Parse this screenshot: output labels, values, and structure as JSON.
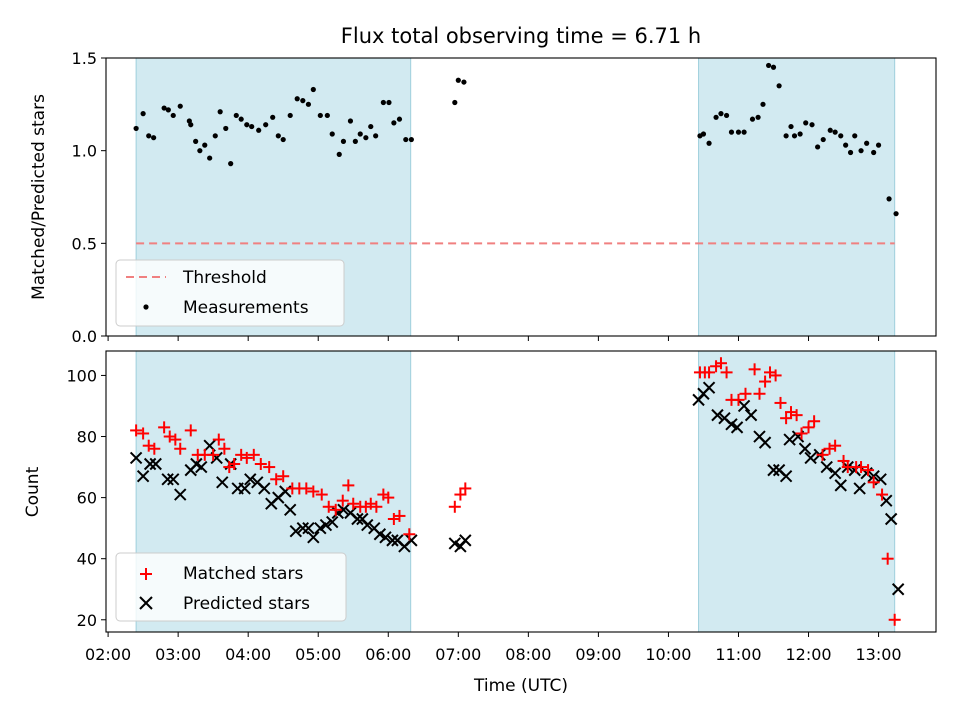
{
  "figure": {
    "title": "Flux total observing time = 6.71 h"
  },
  "chart_data": [
    {
      "type": "scatter",
      "panel": "top",
      "title": "Flux total observing time = 6.71 h",
      "xlabel": "",
      "ylabel": "Matched/Predicted stars",
      "ylim": [
        0,
        1.5
      ],
      "yticks": [
        "0.0",
        "0.5",
        "1.0",
        "1.5"
      ],
      "x_unit": "hours UTC",
      "xlim": [
        1.97,
        13.82
      ],
      "shaded_intervals": [
        [
          2.4,
          6.32
        ],
        [
          10.43,
          13.23
        ]
      ],
      "threshold": {
        "name": "Threshold",
        "value": 0.5,
        "color": "#f08080",
        "style": "dashed"
      },
      "legend": {
        "placement": "lower-left",
        "entries": [
          "Threshold",
          "Measurements"
        ]
      },
      "series": [
        {
          "name": "Measurements",
          "marker": "dot",
          "color": "#000000",
          "points": [
            [
              2.4,
              1.12
            ],
            [
              2.5,
              1.2
            ],
            [
              2.58,
              1.08
            ],
            [
              2.65,
              1.07
            ],
            [
              2.8,
              1.23
            ],
            [
              2.86,
              1.22
            ],
            [
              2.93,
              1.19
            ],
            [
              3.03,
              1.24
            ],
            [
              3.16,
              1.16
            ],
            [
              3.18,
              1.14
            ],
            [
              3.25,
              1.05
            ],
            [
              3.31,
              1.0
            ],
            [
              3.38,
              1.03
            ],
            [
              3.45,
              0.96
            ],
            [
              3.53,
              1.08
            ],
            [
              3.6,
              1.21
            ],
            [
              3.68,
              1.12
            ],
            [
              3.75,
              0.93
            ],
            [
              3.83,
              1.19
            ],
            [
              3.9,
              1.17
            ],
            [
              3.98,
              1.14
            ],
            [
              4.05,
              1.13
            ],
            [
              4.15,
              1.11
            ],
            [
              4.25,
              1.14
            ],
            [
              4.35,
              1.18
            ],
            [
              4.43,
              1.08
            ],
            [
              4.5,
              1.06
            ],
            [
              4.6,
              1.19
            ],
            [
              4.7,
              1.28
            ],
            [
              4.78,
              1.27
            ],
            [
              4.86,
              1.25
            ],
            [
              4.93,
              1.33
            ],
            [
              5.03,
              1.19
            ],
            [
              5.13,
              1.19
            ],
            [
              5.2,
              1.09
            ],
            [
              5.3,
              0.98
            ],
            [
              5.36,
              1.05
            ],
            [
              5.46,
              1.16
            ],
            [
              5.53,
              1.05
            ],
            [
              5.6,
              1.09
            ],
            [
              5.68,
              1.07
            ],
            [
              5.75,
              1.13
            ],
            [
              5.82,
              1.08
            ],
            [
              5.93,
              1.26
            ],
            [
              6.01,
              1.26
            ],
            [
              6.08,
              1.15
            ],
            [
              6.16,
              1.17
            ],
            [
              6.25,
              1.06
            ],
            [
              6.33,
              1.06
            ],
            [
              6.95,
              1.26
            ],
            [
              7.0,
              1.38
            ],
            [
              7.08,
              1.37
            ],
            [
              10.45,
              1.08
            ],
            [
              10.5,
              1.09
            ],
            [
              10.58,
              1.04
            ],
            [
              10.68,
              1.18
            ],
            [
              10.75,
              1.2
            ],
            [
              10.83,
              1.19
            ],
            [
              10.9,
              1.1
            ],
            [
              11.0,
              1.1
            ],
            [
              11.08,
              1.1
            ],
            [
              11.2,
              1.17
            ],
            [
              11.28,
              1.18
            ],
            [
              11.35,
              1.25
            ],
            [
              11.43,
              1.46
            ],
            [
              11.5,
              1.45
            ],
            [
              11.58,
              1.35
            ],
            [
              11.68,
              1.08
            ],
            [
              11.75,
              1.13
            ],
            [
              11.8,
              1.08
            ],
            [
              11.88,
              1.09
            ],
            [
              11.96,
              1.15
            ],
            [
              12.05,
              1.14
            ],
            [
              12.13,
              1.02
            ],
            [
              12.21,
              1.06
            ],
            [
              12.31,
              1.11
            ],
            [
              12.38,
              1.1
            ],
            [
              12.46,
              1.08
            ],
            [
              12.53,
              1.03
            ],
            [
              12.6,
              0.99
            ],
            [
              12.66,
              1.08
            ],
            [
              12.75,
              1.0
            ],
            [
              12.83,
              1.04
            ],
            [
              12.93,
              0.99
            ],
            [
              13.0,
              1.03
            ],
            [
              13.15,
              0.74
            ],
            [
              13.25,
              0.66
            ]
          ]
        }
      ]
    },
    {
      "type": "scatter",
      "panel": "bottom",
      "xlabel": "Time (UTC)",
      "ylabel": "Count",
      "ylim": [
        16,
        108
      ],
      "yticks": [
        "20",
        "40",
        "60",
        "80",
        "100"
      ],
      "xticks": [
        "02:00",
        "03:00",
        "04:00",
        "05:00",
        "06:00",
        "07:00",
        "08:00",
        "09:00",
        "10:00",
        "11:00",
        "12:00",
        "13:00"
      ],
      "x_unit": "hours UTC",
      "xlim": [
        1.97,
        13.82
      ],
      "shaded_intervals": [
        [
          2.4,
          6.32
        ],
        [
          10.43,
          13.23
        ]
      ],
      "legend": {
        "placement": "lower-left",
        "entries": [
          "Matched stars",
          "Predicted stars"
        ]
      },
      "series": [
        {
          "name": "Matched stars",
          "marker": "plus",
          "color": "#ff0000",
          "points": [
            [
              2.4,
              82
            ],
            [
              2.5,
              81
            ],
            [
              2.58,
              77
            ],
            [
              2.66,
              76
            ],
            [
              2.8,
              83
            ],
            [
              2.88,
              80
            ],
            [
              2.96,
              79
            ],
            [
              3.03,
              76
            ],
            [
              3.18,
              82
            ],
            [
              3.28,
              74
            ],
            [
              3.38,
              74
            ],
            [
              3.5,
              74
            ],
            [
              3.58,
              79
            ],
            [
              3.66,
              76
            ],
            [
              3.73,
              70
            ],
            [
              3.8,
              71
            ],
            [
              3.9,
              74
            ],
            [
              3.98,
              73
            ],
            [
              4.08,
              74
            ],
            [
              4.18,
              71
            ],
            [
              4.3,
              70
            ],
            [
              4.4,
              66
            ],
            [
              4.5,
              67
            ],
            [
              4.63,
              63
            ],
            [
              4.73,
              63
            ],
            [
              4.83,
              63
            ],
            [
              4.93,
              62
            ],
            [
              5.05,
              61
            ],
            [
              5.15,
              57
            ],
            [
              5.25,
              56
            ],
            [
              5.35,
              59
            ],
            [
              5.43,
              64
            ],
            [
              5.5,
              58
            ],
            [
              5.6,
              57
            ],
            [
              5.68,
              57
            ],
            [
              5.75,
              58
            ],
            [
              5.83,
              57
            ],
            [
              5.93,
              61
            ],
            [
              6.0,
              60
            ],
            [
              6.08,
              53
            ],
            [
              6.16,
              54
            ],
            [
              6.3,
              48
            ],
            [
              6.95,
              57
            ],
            [
              7.03,
              61
            ],
            [
              7.1,
              63
            ],
            [
              10.45,
              101
            ],
            [
              10.52,
              101
            ],
            [
              10.58,
              101
            ],
            [
              10.68,
              103
            ],
            [
              10.75,
              104
            ],
            [
              10.83,
              101
            ],
            [
              10.9,
              92
            ],
            [
              11.0,
              92
            ],
            [
              11.1,
              94
            ],
            [
              11.23,
              102
            ],
            [
              11.3,
              94
            ],
            [
              11.38,
              98
            ],
            [
              11.45,
              101
            ],
            [
              11.53,
              100
            ],
            [
              11.6,
              91
            ],
            [
              11.68,
              86
            ],
            [
              11.75,
              88
            ],
            [
              11.83,
              87
            ],
            [
              11.9,
              81
            ],
            [
              12.0,
              83
            ],
            [
              12.08,
              85
            ],
            [
              12.2,
              74
            ],
            [
              12.3,
              76
            ],
            [
              12.38,
              77
            ],
            [
              12.5,
              72
            ],
            [
              12.56,
              70
            ],
            [
              12.68,
              70
            ],
            [
              12.75,
              70
            ],
            [
              12.85,
              69
            ],
            [
              12.93,
              65
            ],
            [
              13.05,
              61
            ],
            [
              13.13,
              40
            ],
            [
              13.23,
              20
            ]
          ]
        },
        {
          "name": "Predicted stars",
          "marker": "cross",
          "color": "#000000",
          "points": [
            [
              2.4,
              73
            ],
            [
              2.5,
              67
            ],
            [
              2.6,
              71
            ],
            [
              2.68,
              71
            ],
            [
              2.85,
              66
            ],
            [
              2.93,
              66
            ],
            [
              3.03,
              61
            ],
            [
              3.18,
              69
            ],
            [
              3.26,
              71
            ],
            [
              3.33,
              70
            ],
            [
              3.45,
              77
            ],
            [
              3.55,
              73
            ],
            [
              3.63,
              65
            ],
            [
              3.75,
              71
            ],
            [
              3.85,
              63
            ],
            [
              3.95,
              63
            ],
            [
              4.03,
              66
            ],
            [
              4.13,
              65
            ],
            [
              4.23,
              63
            ],
            [
              4.33,
              58
            ],
            [
              4.43,
              60
            ],
            [
              4.53,
              62
            ],
            [
              4.6,
              56
            ],
            [
              4.68,
              49
            ],
            [
              4.78,
              50
            ],
            [
              4.86,
              50
            ],
            [
              4.93,
              47
            ],
            [
              5.03,
              50
            ],
            [
              5.11,
              51
            ],
            [
              5.2,
              52
            ],
            [
              5.28,
              55
            ],
            [
              5.36,
              56
            ],
            [
              5.46,
              55
            ],
            [
              5.56,
              53
            ],
            [
              5.63,
              53
            ],
            [
              5.7,
              51
            ],
            [
              5.8,
              50
            ],
            [
              5.88,
              48
            ],
            [
              5.96,
              47
            ],
            [
              6.06,
              46
            ],
            [
              6.13,
              46
            ],
            [
              6.23,
              44
            ],
            [
              6.33,
              46
            ],
            [
              6.95,
              45
            ],
            [
              7.03,
              44
            ],
            [
              7.1,
              46
            ],
            [
              10.43,
              92
            ],
            [
              10.5,
              94
            ],
            [
              10.58,
              96
            ],
            [
              10.7,
              87
            ],
            [
              10.8,
              86
            ],
            [
              10.9,
              84
            ],
            [
              10.98,
              83
            ],
            [
              11.08,
              90
            ],
            [
              11.18,
              87
            ],
            [
              11.3,
              80
            ],
            [
              11.38,
              78
            ],
            [
              11.5,
              69
            ],
            [
              11.58,
              69
            ],
            [
              11.68,
              67
            ],
            [
              11.73,
              79
            ],
            [
              11.85,
              80
            ],
            [
              11.95,
              76
            ],
            [
              12.03,
              73
            ],
            [
              12.16,
              74
            ],
            [
              12.26,
              70
            ],
            [
              12.38,
              68
            ],
            [
              12.46,
              64
            ],
            [
              12.56,
              70
            ],
            [
              12.66,
              69
            ],
            [
              12.73,
              63
            ],
            [
              12.83,
              68
            ],
            [
              12.93,
              67
            ],
            [
              13.03,
              66
            ],
            [
              13.11,
              59
            ],
            [
              13.18,
              53
            ],
            [
              13.28,
              30
            ]
          ]
        }
      ]
    }
  ],
  "colors": {
    "shade": "#add8e6",
    "matched": "#ff0000",
    "predicted": "#000000",
    "threshold": "#f08080"
  }
}
